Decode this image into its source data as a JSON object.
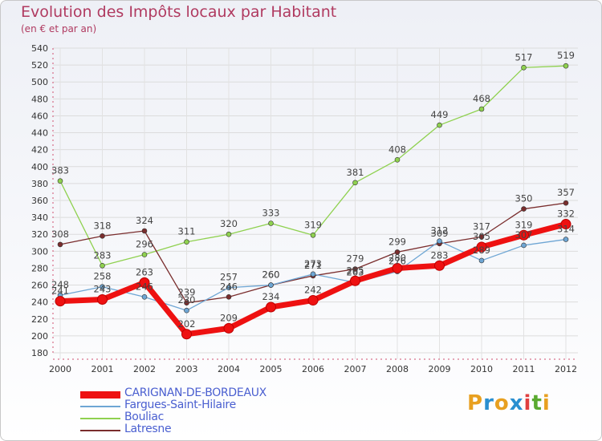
{
  "title": "Evolution des Impôts locaux par Habitant",
  "subtitle": "(en € et par an)",
  "logo": {
    "text": "Proxiti",
    "letters": [
      "P",
      "r",
      "o",
      "x",
      "i",
      "t",
      "i"
    ],
    "colors": [
      "#e8a020",
      "#2a8fd0",
      "#e8a020",
      "#2a8fd0",
      "#e04040",
      "#5aaa30",
      "#e8a020"
    ]
  },
  "chart_data": {
    "type": "line",
    "title": "Evolution des Impôts locaux par Habitant",
    "ylabel": "(en € et par an)",
    "xlabel": "",
    "ylim": [
      180,
      540
    ],
    "yticks": [
      180,
      200,
      220,
      240,
      260,
      280,
      300,
      320,
      340,
      360,
      380,
      400,
      420,
      440,
      460,
      480,
      500,
      520,
      540
    ],
    "grid": true,
    "legend_position": "bottom-left",
    "categories": [
      "2000",
      "2001",
      "2002",
      "2003",
      "2004",
      "2005",
      "2006",
      "2007",
      "2008",
      "2009",
      "2010",
      "2011",
      "2012"
    ],
    "series": [
      {
        "name": "CARIGNAN-DE-BORDEAUX",
        "color": "#ee1111",
        "emphasis": true,
        "values": [
          241,
          243,
          263,
          202,
          209,
          234,
          242,
          265,
          280,
          283,
          305,
          319,
          332
        ]
      },
      {
        "name": "Fargues-Saint-Hilaire",
        "color": "#6ea6d4",
        "emphasis": false,
        "values": [
          248,
          258,
          246,
          230,
          257,
          260,
          273,
          263,
          276,
          312,
          289,
          307,
          314
        ]
      },
      {
        "name": "Bouliac",
        "color": "#8fd14f",
        "emphasis": false,
        "values": [
          383,
          283,
          296,
          311,
          320,
          333,
          319,
          381,
          408,
          449,
          468,
          517,
          519
        ]
      },
      {
        "name": "Latresne",
        "color": "#7a2d2d",
        "emphasis": false,
        "values": [
          308,
          318,
          324,
          239,
          246,
          260,
          271,
          279,
          299,
          309,
          317,
          350,
          357
        ]
      }
    ],
    "data_labels": [
      [
        "241",
        "243",
        "263",
        "202",
        "209",
        "234",
        "242",
        "265",
        "280",
        "283",
        "305",
        "319",
        "332"
      ],
      [
        "248",
        "258",
        "246",
        "230",
        "257",
        "260",
        "273",
        "263",
        "276",
        "312",
        "289",
        "307",
        "314"
      ],
      [
        "383",
        "283",
        "296",
        "311",
        "320",
        "333",
        "319",
        "381",
        "408",
        "449",
        "468",
        "517",
        "519"
      ],
      [
        "308",
        "318",
        "324",
        "239",
        "246",
        "260",
        "271",
        "279",
        "299",
        "309",
        "317",
        "350",
        "357"
      ]
    ]
  }
}
